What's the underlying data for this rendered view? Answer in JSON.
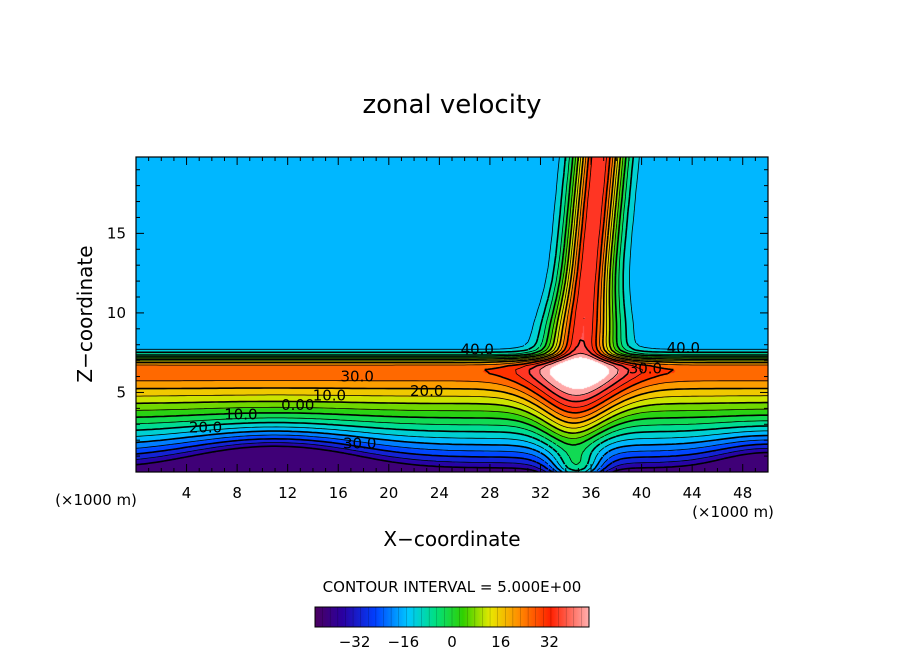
{
  "chart_data": {
    "type": "contour",
    "title": "zonal velocity",
    "xlabel": "X−coordinate",
    "ylabel": "Z−coordinate",
    "xlim": [
      0,
      50
    ],
    "ylim": [
      0,
      19.8
    ],
    "x_unit_left": "(×1000 m)",
    "x_unit_right": "(×1000 m)",
    "x_ticks": [
      4,
      8,
      12,
      16,
      20,
      24,
      28,
      32,
      36,
      40,
      44,
      48
    ],
    "x_tick_labels": [
      "4",
      "8",
      "12",
      "16",
      "20",
      "24",
      "28",
      "32",
      "36",
      "40",
      "44",
      "48"
    ],
    "y_ticks": [
      5,
      10,
      15
    ],
    "y_tick_labels": [
      "5",
      "10",
      "15"
    ],
    "contour_interval_text": "CONTOUR INTERVAL = 5.000E+00",
    "contour_labels": [
      {
        "text": "40.0",
        "x": 27.0,
        "y": 7.7
      },
      {
        "text": "40.0",
        "x": 43.3,
        "y": 7.8
      },
      {
        "text": "30.0",
        "x": 17.5,
        "y": 6.0
      },
      {
        "text": "30.0",
        "x": 40.3,
        "y": 6.5
      },
      {
        "text": "20.0",
        "x": 23.0,
        "y": 5.1
      },
      {
        "text": "10.0",
        "x": 15.3,
        "y": 4.8
      },
      {
        "text": "0.00",
        "x": 12.8,
        "y": 4.2
      },
      {
        "text": "10.0",
        "x": 8.3,
        "y": 3.6
      },
      {
        "text": "20.0",
        "x": 5.5,
        "y": 2.8
      },
      {
        "text": "30.0",
        "x": 17.7,
        "y": 1.8
      }
    ],
    "colorbar": {
      "min": -45,
      "max": 45,
      "ticks": [
        -32,
        -16,
        0,
        16,
        32
      ],
      "tick_labels": [
        "−32",
        "−16",
        "0",
        "16",
        "32"
      ]
    }
  }
}
